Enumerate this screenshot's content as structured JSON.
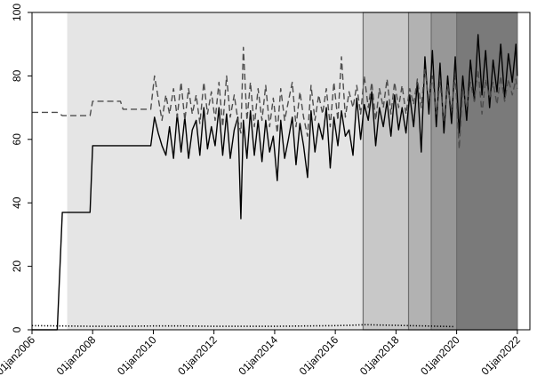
{
  "chart_data": {
    "type": "line",
    "title": "",
    "xlabel": "",
    "ylabel": "",
    "xlim": [
      "2006-01-01",
      "2022-06-01"
    ],
    "ylim": [
      0,
      100
    ],
    "x_ticks": [
      "2006-01-01",
      "2008-01-01",
      "2010-01-01",
      "2012-01-01",
      "2014-01-01",
      "2016-01-01",
      "2018-01-01",
      "2020-01-01",
      "2022-01-01"
    ],
    "x_tick_labels": [
      "01jan2006",
      "01jan2008",
      "01jan2010",
      "01jan2012",
      "01jan2014",
      "01jan2016",
      "01jan2018",
      "01jan2020",
      "01jan2022"
    ],
    "y_ticks": [
      0,
      20,
      40,
      60,
      80,
      100
    ],
    "y_tick_labels": [
      "0",
      "20",
      "40",
      "60",
      "80",
      "100"
    ],
    "grid": false,
    "legend": "none",
    "shaded_regions": [
      {
        "start": "2007-03-01",
        "end": "2022-01-01",
        "color": "#e5e5e5"
      },
      {
        "start": "2016-12-01",
        "end": "2022-01-01",
        "color": "#c8c8c8"
      },
      {
        "start": "2018-06-01",
        "end": "2022-01-01",
        "color": "#b2b2b2"
      },
      {
        "start": "2019-03-01",
        "end": "2022-01-01",
        "color": "#979797"
      },
      {
        "start": "2020-01-01",
        "end": "2022-01-01",
        "color": "#7a7a7a"
      }
    ],
    "series": [
      {
        "style": "solid",
        "color": "#000000",
        "points": [
          [
            "2006-01-01",
            0
          ],
          [
            "2006-11-01",
            0
          ],
          [
            "2007-01-01",
            37
          ],
          [
            "2007-12-01",
            37
          ],
          [
            "2008-01-01",
            58
          ],
          [
            "2009-12-01",
            58
          ],
          [
            "2010-01-15",
            67
          ],
          [
            "2010-03-01",
            62
          ],
          [
            "2010-04-15",
            58
          ],
          [
            "2010-06-01",
            55
          ],
          [
            "2010-07-15",
            64
          ],
          [
            "2010-09-01",
            54
          ],
          [
            "2010-10-15",
            68
          ],
          [
            "2010-12-01",
            56
          ],
          [
            "2011-01-15",
            67
          ],
          [
            "2011-03-01",
            54
          ],
          [
            "2011-04-15",
            63
          ],
          [
            "2011-06-01",
            66
          ],
          [
            "2011-07-15",
            55
          ],
          [
            "2011-09-01",
            70
          ],
          [
            "2011-10-15",
            57
          ],
          [
            "2011-12-01",
            64
          ],
          [
            "2012-01-15",
            58
          ],
          [
            "2012-03-01",
            70
          ],
          [
            "2012-04-15",
            55
          ],
          [
            "2012-06-01",
            68
          ],
          [
            "2012-07-15",
            54
          ],
          [
            "2012-09-01",
            63
          ],
          [
            "2012-10-15",
            67
          ],
          [
            "2012-11-20",
            35
          ],
          [
            "2012-12-20",
            66
          ],
          [
            "2013-02-01",
            54
          ],
          [
            "2013-03-15",
            69
          ],
          [
            "2013-05-01",
            55
          ],
          [
            "2013-06-15",
            66
          ],
          [
            "2013-08-01",
            53
          ],
          [
            "2013-09-15",
            66
          ],
          [
            "2013-11-01",
            56
          ],
          [
            "2013-12-15",
            61
          ],
          [
            "2014-02-01",
            47
          ],
          [
            "2014-03-15",
            66
          ],
          [
            "2014-05-01",
            54
          ],
          [
            "2014-06-15",
            60
          ],
          [
            "2014-08-01",
            67
          ],
          [
            "2014-09-15",
            52
          ],
          [
            "2014-11-01",
            65
          ],
          [
            "2014-12-15",
            58
          ],
          [
            "2015-02-01",
            48
          ],
          [
            "2015-03-15",
            69
          ],
          [
            "2015-05-01",
            56
          ],
          [
            "2015-06-15",
            65
          ],
          [
            "2015-08-01",
            60
          ],
          [
            "2015-09-15",
            70
          ],
          [
            "2015-11-01",
            51
          ],
          [
            "2015-12-15",
            67
          ],
          [
            "2016-02-01",
            58
          ],
          [
            "2016-03-15",
            69
          ],
          [
            "2016-05-01",
            61
          ],
          [
            "2016-06-15",
            63
          ],
          [
            "2016-08-01",
            55
          ],
          [
            "2016-09-15",
            73
          ],
          [
            "2016-11-01",
            60
          ],
          [
            "2016-12-15",
            71
          ],
          [
            "2017-02-01",
            66
          ],
          [
            "2017-03-15",
            75
          ],
          [
            "2017-05-01",
            58
          ],
          [
            "2017-06-15",
            70
          ],
          [
            "2017-08-01",
            64
          ],
          [
            "2017-09-15",
            72
          ],
          [
            "2017-11-01",
            61
          ],
          [
            "2017-12-15",
            74
          ],
          [
            "2018-02-01",
            63
          ],
          [
            "2018-03-15",
            70
          ],
          [
            "2018-05-01",
            62
          ],
          [
            "2018-06-15",
            74
          ],
          [
            "2018-08-01",
            64
          ],
          [
            "2018-09-15",
            78
          ],
          [
            "2018-11-01",
            56
          ],
          [
            "2018-12-15",
            86
          ],
          [
            "2019-02-01",
            68
          ],
          [
            "2019-03-15",
            88
          ],
          [
            "2019-05-01",
            64
          ],
          [
            "2019-06-15",
            84
          ],
          [
            "2019-08-01",
            62
          ],
          [
            "2019-09-15",
            80
          ],
          [
            "2019-11-01",
            65
          ],
          [
            "2019-12-15",
            86
          ],
          [
            "2020-02-01",
            62
          ],
          [
            "2020-03-15",
            80
          ],
          [
            "2020-05-01",
            66
          ],
          [
            "2020-06-15",
            85
          ],
          [
            "2020-08-01",
            72
          ],
          [
            "2020-09-15",
            93
          ],
          [
            "2020-11-01",
            74
          ],
          [
            "2020-12-15",
            88
          ],
          [
            "2021-02-01",
            70
          ],
          [
            "2021-03-15",
            85
          ],
          [
            "2021-05-01",
            75
          ],
          [
            "2021-06-15",
            90
          ],
          [
            "2021-08-01",
            73
          ],
          [
            "2021-09-15",
            87
          ],
          [
            "2021-11-01",
            78
          ],
          [
            "2021-12-15",
            90
          ],
          [
            "2022-01-01",
            80
          ]
        ]
      },
      {
        "style": "dashed",
        "color": "#4d4d4d",
        "points": [
          [
            "2006-01-01",
            68.5
          ],
          [
            "2006-11-01",
            68.5
          ],
          [
            "2007-01-01",
            67.5
          ],
          [
            "2007-12-01",
            67.5
          ],
          [
            "2008-01-01",
            72
          ],
          [
            "2008-12-01",
            72
          ],
          [
            "2009-01-01",
            69.5
          ],
          [
            "2009-12-01",
            69.5
          ],
          [
            "2010-01-15",
            80
          ],
          [
            "2010-03-01",
            73
          ],
          [
            "2010-04-15",
            66
          ],
          [
            "2010-06-01",
            74
          ],
          [
            "2010-07-15",
            68
          ],
          [
            "2010-09-01",
            76
          ],
          [
            "2010-10-15",
            67
          ],
          [
            "2010-12-01",
            78
          ],
          [
            "2011-01-15",
            66
          ],
          [
            "2011-03-01",
            76
          ],
          [
            "2011-04-15",
            68
          ],
          [
            "2011-06-01",
            74
          ],
          [
            "2011-07-15",
            65
          ],
          [
            "2011-09-01",
            78
          ],
          [
            "2011-10-15",
            68
          ],
          [
            "2011-12-01",
            75
          ],
          [
            "2012-01-15",
            66
          ],
          [
            "2012-03-01",
            78
          ],
          [
            "2012-04-15",
            64
          ],
          [
            "2012-06-01",
            80
          ],
          [
            "2012-07-15",
            67
          ],
          [
            "2012-09-01",
            74
          ],
          [
            "2012-10-15",
            66
          ],
          [
            "2012-11-20",
            62
          ],
          [
            "2012-12-20",
            89
          ],
          [
            "2013-02-01",
            66
          ],
          [
            "2013-03-15",
            78
          ],
          [
            "2013-05-01",
            64
          ],
          [
            "2013-06-15",
            76
          ],
          [
            "2013-08-01",
            66
          ],
          [
            "2013-09-15",
            77
          ],
          [
            "2013-11-01",
            64
          ],
          [
            "2013-12-15",
            73
          ],
          [
            "2014-02-01",
            62
          ],
          [
            "2014-03-15",
            76
          ],
          [
            "2014-05-01",
            66
          ],
          [
            "2014-06-15",
            72
          ],
          [
            "2014-08-01",
            78
          ],
          [
            "2014-09-15",
            64
          ],
          [
            "2014-11-01",
            75
          ],
          [
            "2014-12-15",
            67
          ],
          [
            "2015-02-01",
            61
          ],
          [
            "2015-03-15",
            77
          ],
          [
            "2015-05-01",
            66
          ],
          [
            "2015-06-15",
            74
          ],
          [
            "2015-08-01",
            68
          ],
          [
            "2015-09-15",
            76
          ],
          [
            "2015-11-01",
            64
          ],
          [
            "2015-12-15",
            78
          ],
          [
            "2016-02-01",
            66
          ],
          [
            "2016-03-15",
            86
          ],
          [
            "2016-05-01",
            67
          ],
          [
            "2016-06-15",
            75
          ],
          [
            "2016-08-01",
            70
          ],
          [
            "2016-09-15",
            77
          ],
          [
            "2016-11-01",
            68
          ],
          [
            "2016-12-15",
            80
          ],
          [
            "2017-02-01",
            70
          ],
          [
            "2017-03-15",
            78
          ],
          [
            "2017-05-01",
            66
          ],
          [
            "2017-06-15",
            76
          ],
          [
            "2017-08-01",
            70
          ],
          [
            "2017-09-15",
            79
          ],
          [
            "2017-11-01",
            68
          ],
          [
            "2017-12-15",
            78
          ],
          [
            "2018-02-01",
            70
          ],
          [
            "2018-03-15",
            77
          ],
          [
            "2018-05-01",
            68
          ],
          [
            "2018-06-15",
            76
          ],
          [
            "2018-08-01",
            71
          ],
          [
            "2018-09-15",
            79
          ],
          [
            "2018-11-01",
            70
          ],
          [
            "2018-12-15",
            82
          ],
          [
            "2019-02-01",
            72
          ],
          [
            "2019-03-15",
            80
          ],
          [
            "2019-05-01",
            68
          ],
          [
            "2019-06-15",
            78
          ],
          [
            "2019-08-01",
            66
          ],
          [
            "2019-09-15",
            77
          ],
          [
            "2019-11-01",
            69
          ],
          [
            "2019-12-15",
            80
          ],
          [
            "2020-02-01",
            57
          ],
          [
            "2020-03-15",
            76
          ],
          [
            "2020-05-01",
            70
          ],
          [
            "2020-06-15",
            78
          ],
          [
            "2020-08-01",
            72
          ],
          [
            "2020-09-15",
            82
          ],
          [
            "2020-11-01",
            68
          ],
          [
            "2020-12-15",
            79
          ],
          [
            "2021-02-01",
            73
          ],
          [
            "2021-03-15",
            78
          ],
          [
            "2021-05-01",
            71
          ],
          [
            "2021-06-15",
            80
          ],
          [
            "2021-08-01",
            72
          ],
          [
            "2021-09-15",
            79
          ],
          [
            "2021-11-01",
            74
          ],
          [
            "2021-12-15",
            79
          ],
          [
            "2022-01-01",
            76
          ]
        ]
      },
      {
        "style": "dotted",
        "color": "#000000",
        "points": [
          [
            "2006-01-01",
            1.3
          ],
          [
            "2007-01-01",
            1.2
          ],
          [
            "2008-01-01",
            1.1
          ],
          [
            "2009-01-01",
            1.1
          ],
          [
            "2010-01-01",
            1.2
          ],
          [
            "2011-01-01",
            1.2
          ],
          [
            "2012-01-01",
            1.1
          ],
          [
            "2013-01-01",
            1.1
          ],
          [
            "2014-01-01",
            1.1
          ],
          [
            "2015-01-01",
            1.2
          ],
          [
            "2016-01-01",
            1.3
          ],
          [
            "2016-06-01",
            1.4
          ],
          [
            "2017-01-01",
            1.6
          ],
          [
            "2017-06-01",
            1.5
          ],
          [
            "2018-01-01",
            1.4
          ],
          [
            "2018-06-01",
            1.3
          ],
          [
            "2019-01-01",
            1.2
          ],
          [
            "2019-06-01",
            1.1
          ],
          [
            "2019-12-01",
            1.0
          ]
        ]
      }
    ]
  }
}
